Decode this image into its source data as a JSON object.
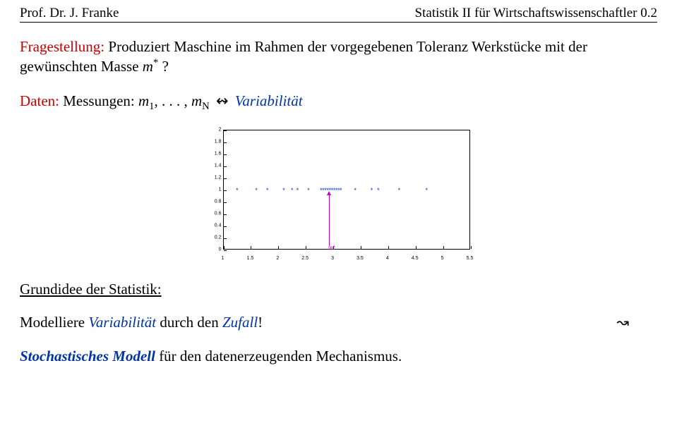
{
  "header": {
    "left": "Prof. Dr. J. Franke",
    "right": "Statistik II für Wirtschaftswissenschaftler 0.2"
  },
  "frage": {
    "label": "Fragestellung:",
    "text1": " Produziert Maschine im Rahmen der vorgegebenen Toleranz Werkstücke mit der gewünschten Masse ",
    "mvar": "m",
    "star": "*",
    "qmark": " ?"
  },
  "daten": {
    "label": "Daten:",
    "text1": " Messungen: ",
    "m1": "m",
    "sub1": "1",
    "sep": ", . . . , ",
    "mN": "m",
    "subN": "N",
    "arrow": " ↭ ",
    "variab": "Variabilität"
  },
  "chart": {
    "xlim": [
      1,
      5.5
    ],
    "ylim": [
      0,
      2
    ],
    "xtick_step": 0.5,
    "ytick_step": 0.2,
    "xticks": [
      "1",
      "1.5",
      "2",
      "2.5",
      "3",
      "3.5",
      "4",
      "4.5",
      "5",
      "5.5"
    ],
    "yticks": [
      "0",
      "0.2",
      "0.4",
      "0.6",
      "0.8",
      "1",
      "1.2",
      "1.4",
      "1.6",
      "1.8",
      "2"
    ],
    "marker_color": "#0033cc",
    "mstar_color": "#cc00cc",
    "mstar_x": 2.92,
    "mstar_label": "m*",
    "points_x": [
      1.25,
      1.6,
      1.8,
      2.1,
      2.25,
      2.35,
      2.55,
      2.78,
      2.82,
      2.86,
      2.9,
      2.94,
      2.98,
      3.02,
      3.06,
      3.1,
      3.14,
      3.4,
      3.7,
      3.82,
      4.2,
      4.7
    ],
    "points_y": 1.0
  },
  "grundidee": {
    "title": "Grundidee der Statistik:",
    "text1": "Modelliere ",
    "variab": "Variabilität",
    "text2": " durch den ",
    "zufall": "Zufall",
    "excl": "!",
    "arrow": "↝"
  },
  "stoch": {
    "label": "Stochastisches Modell",
    "rest": " für den datenerzeugenden Mechanismus."
  }
}
